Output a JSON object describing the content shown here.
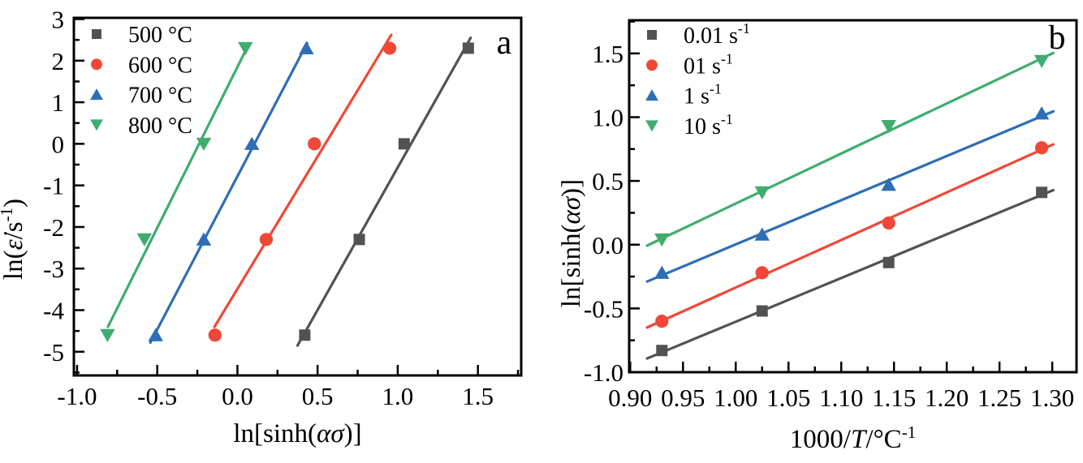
{
  "figure": {
    "description_visible_panels": [
      "a",
      "b"
    ]
  },
  "chart_data": [
    {
      "type": "scatter",
      "panel_label": "a",
      "xlabel_parts": [
        {
          "t": "ln[sinh("
        },
        {
          "t": "ασ",
          "italic": true
        },
        {
          "t": ")]"
        }
      ],
      "ylabel_parts": [
        {
          "t": "ln("
        },
        {
          "t": "ε̇",
          "italic": true
        },
        {
          "t": "/s"
        },
        {
          "t": "-1",
          "sup": true
        },
        {
          "t": ")"
        }
      ],
      "xlim": [
        -1.02,
        1.77
      ],
      "ylim": [
        -5.57,
        3.03
      ],
      "xticks": {
        "values": [
          -1.0,
          -0.5,
          0.0,
          0.5,
          1.0,
          1.5
        ],
        "labels": [
          "-1.0",
          "-0.5",
          "0.0",
          "0.5",
          "1.0",
          "1.5"
        ],
        "minor_step": 0.25
      },
      "yticks": {
        "values": [
          3,
          2,
          1,
          0,
          -1,
          -2,
          -3,
          -4,
          -5
        ],
        "labels": [
          "3",
          "2",
          "1",
          "0",
          "-1",
          "-2",
          "-3",
          "-4",
          "-5"
        ],
        "minor_step": 0.5
      },
      "legend_position": "top-left",
      "grid": false,
      "series": [
        {
          "name_parts": [
            {
              "t": "500 °C"
            }
          ],
          "marker": "square",
          "color": "#525252",
          "x": [
            0.42,
            0.76,
            1.04,
            1.44
          ],
          "y": [
            -4.6,
            -2.3,
            0.0,
            2.3
          ],
          "fit_extent_y": [
            -4.85,
            2.55
          ]
        },
        {
          "name_parts": [
            {
              "t": "600 °C"
            }
          ],
          "marker": "circle",
          "color": "#ef4837",
          "x": [
            -0.14,
            0.18,
            0.48,
            0.95
          ],
          "y": [
            -4.6,
            -2.3,
            0.0,
            2.3
          ],
          "fit_extent_y": [
            -4.4,
            2.62
          ]
        },
        {
          "name_parts": [
            {
              "t": "700 °C"
            }
          ],
          "marker": "triangle-up",
          "color": "#2e6eb5",
          "x": [
            -0.51,
            -0.21,
            0.09,
            0.43
          ],
          "y": [
            -4.6,
            -2.3,
            0.0,
            2.3
          ],
          "fit_extent_y": [
            -4.78,
            2.42
          ]
        },
        {
          "name_parts": [
            {
              "t": "800 °C"
            }
          ],
          "marker": "triangle-down",
          "color": "#3fad6f",
          "x": [
            -0.81,
            -0.58,
            -0.21,
            0.05
          ],
          "y": [
            -4.6,
            -2.3,
            0.0,
            2.3
          ],
          "fit_extent_y": [
            -4.4,
            2.26
          ]
        }
      ]
    },
    {
      "type": "scatter",
      "panel_label": "b",
      "xlabel_parts": [
        {
          "t": "1000/"
        },
        {
          "t": "T",
          "italic": true
        },
        {
          "t": "/°C"
        },
        {
          "t": "-1",
          "sup": true
        }
      ],
      "ylabel_parts": [
        {
          "t": "ln[sinh("
        },
        {
          "t": "ασ",
          "italic": true
        },
        {
          "t": ")]"
        }
      ],
      "xlim": [
        0.899,
        1.323
      ],
      "ylim": [
        -1.0,
        1.76
      ],
      "xticks": {
        "values": [
          0.9,
          0.95,
          1.0,
          1.05,
          1.1,
          1.15,
          1.2,
          1.25,
          1.3
        ],
        "labels": [
          "0.90",
          "0.95",
          "1.00",
          "1.05",
          "1.10",
          "1.15",
          "1.20",
          "1.25",
          "1.30"
        ],
        "minor_step": 0.025
      },
      "yticks": {
        "values": [
          1.5,
          1.0,
          0.5,
          0.0,
          -0.5,
          -1.0
        ],
        "labels": [
          "1.5",
          "1.0",
          "0.5",
          "0.0",
          "-0.5",
          "-1.0"
        ],
        "minor_step": 0.25
      },
      "legend_position": "top-left",
      "grid": false,
      "series": [
        {
          "name_parts": [
            {
              "t": "0.01 s"
            },
            {
              "t": "-1",
              "sup": true
            }
          ],
          "marker": "square",
          "color": "#525252",
          "x": [
            0.93,
            1.025,
            1.145,
            1.29
          ],
          "y": [
            -0.83,
            -0.52,
            -0.14,
            0.41
          ],
          "fit_extent_x": [
            0.916,
            1.301
          ]
        },
        {
          "name_parts": [
            {
              "t": "01 s"
            },
            {
              "t": "-1",
              "sup": true
            }
          ],
          "marker": "circle",
          "color": "#ef4837",
          "x": [
            0.93,
            1.025,
            1.145,
            1.29
          ],
          "y": [
            -0.6,
            -0.22,
            0.17,
            0.76
          ],
          "fit_extent_x": [
            0.916,
            1.301
          ]
        },
        {
          "name_parts": [
            {
              "t": "1 s"
            },
            {
              "t": "-1",
              "sup": true
            }
          ],
          "marker": "triangle-up",
          "color": "#2e6eb5",
          "x": [
            0.93,
            1.025,
            1.145,
            1.29
          ],
          "y": [
            -0.22,
            0.08,
            0.47,
            1.03
          ],
          "fit_extent_x": [
            0.916,
            1.301
          ]
        },
        {
          "name_parts": [
            {
              "t": "10 s"
            },
            {
              "t": "-1",
              "sup": true
            }
          ],
          "marker": "triangle-down",
          "color": "#3fad6f",
          "x": [
            0.93,
            1.025,
            1.145,
            1.29
          ],
          "y": [
            0.04,
            0.41,
            0.93,
            1.44
          ],
          "fit_extent_x": [
            0.916,
            1.301
          ]
        }
      ]
    }
  ]
}
